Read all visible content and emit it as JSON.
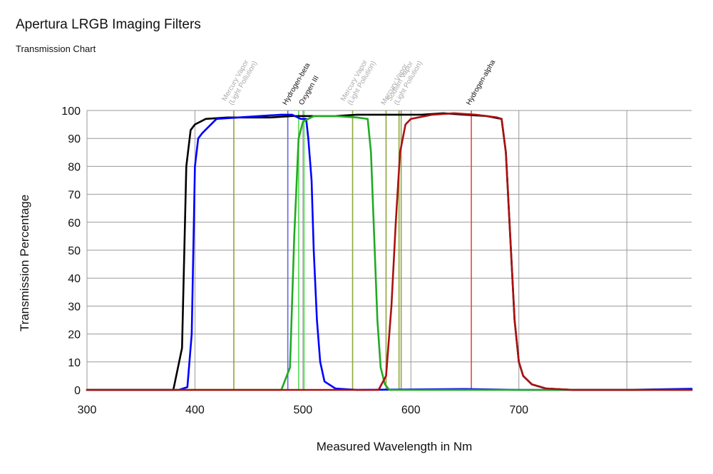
{
  "header": {
    "title": "Apertura LRGB Imaging Filters",
    "subtitle": "Transmission Chart"
  },
  "chart_data": {
    "type": "line",
    "title": "Apertura LRGB Imaging Filters",
    "subtitle": "Transmission Chart",
    "xlabel": "Measured Wavelength in Nm",
    "ylabel": "Transmission Percentage",
    "xlim": [
      300,
      860
    ],
    "ylim": [
      0,
      100
    ],
    "x_ticks": [
      300,
      400,
      500,
      600,
      700
    ],
    "y_ticks": [
      0,
      10,
      20,
      30,
      40,
      50,
      60,
      70,
      80,
      90,
      100
    ],
    "x_gridlines": [
      300,
      400,
      500,
      600,
      700,
      800
    ],
    "grid": true,
    "legend": "none",
    "series": [
      {
        "color": "#000000",
        "x": [
          300,
          380,
          388,
          392,
          396,
          400,
          410,
          430,
          450,
          470,
          490,
          510,
          530,
          550,
          570,
          590,
          610,
          630,
          650,
          670,
          684,
          688,
          692,
          696,
          700,
          704,
          712,
          725,
          750,
          800,
          860
        ],
        "y": [
          0,
          0,
          15,
          80,
          93,
          95,
          97,
          97.5,
          97.5,
          97.5,
          98,
          98,
          98,
          98.5,
          98.5,
          98.5,
          98.5,
          99,
          98.5,
          98,
          97,
          85,
          55,
          25,
          10,
          5,
          2,
          0.5,
          0,
          0,
          0.2
        ]
      },
      {
        "color": "#0000ff",
        "x": [
          300,
          385,
          393,
          397,
          400,
          403,
          407,
          420,
          440,
          460,
          480,
          490,
          498,
          503,
          505,
          508,
          510,
          513,
          516,
          520,
          530,
          550,
          650,
          700,
          800,
          860
        ],
        "y": [
          0,
          0,
          1,
          20,
          80,
          90,
          92,
          97,
          97.5,
          98,
          98.5,
          98.5,
          97,
          97,
          90,
          75,
          50,
          25,
          10,
          3,
          0.5,
          0,
          0.3,
          0,
          0,
          0.4
        ]
      },
      {
        "color": "#22aa22",
        "x": [
          300,
          480,
          488,
          492,
          496,
          500,
          510,
          530,
          550,
          560,
          563,
          566,
          569,
          572,
          576,
          580,
          600,
          860
        ],
        "y": [
          0,
          0,
          8,
          55,
          90,
          96,
          98,
          98,
          97.5,
          97,
          85,
          55,
          25,
          8,
          2,
          0,
          0,
          0
        ]
      },
      {
        "color": "#aa1111",
        "x": [
          300,
          570,
          577,
          582,
          586,
          590,
          595,
          600,
          620,
          640,
          660,
          680,
          684,
          688,
          692,
          696,
          700,
          704,
          712,
          725,
          750,
          860
        ],
        "y": [
          0,
          0,
          5,
          30,
          60,
          85,
          95,
          97,
          98.5,
          99,
          98.5,
          97.5,
          97,
          85,
          55,
          25,
          10,
          5,
          2,
          0.5,
          0,
          0
        ]
      }
    ],
    "reference_lines": [
      {
        "wavelength": 436,
        "label": "Mercury Vapor\n(Light Pollution)",
        "color": "#8fa83c",
        "label_color": "#aaaaaa"
      },
      {
        "wavelength": 486,
        "label": "Hydrogen-beta",
        "color": "#6666ee",
        "label_color": "#111111"
      },
      {
        "wavelength": 496,
        "label": "",
        "color": "#55dd55",
        "label_color": "#111111"
      },
      {
        "wavelength": 501,
        "label": "Oxygen III",
        "color": "#55dd55",
        "label_color": "#111111"
      },
      {
        "wavelength": 546,
        "label": "Mercury Vapor\n(Light Pollution)",
        "color": "#8fa83c",
        "label_color": "#aaaaaa"
      },
      {
        "wavelength": 577,
        "label": "Mercury Vapor",
        "color": "#8fa83c",
        "label_color": "#aaaaaa"
      },
      {
        "wavelength": 589,
        "label": "Sodium Vapor\n(Light Pollution)",
        "color": "#8fa83c",
        "label_color": "#aaaaaa"
      },
      {
        "wavelength": 591,
        "label": "",
        "color": "#8fa83c",
        "label_color": "#aaaaaa"
      },
      {
        "wavelength": 656,
        "label": "Hydrogen-alpha",
        "color": "#ee4444",
        "label_color": "#111111"
      }
    ]
  }
}
